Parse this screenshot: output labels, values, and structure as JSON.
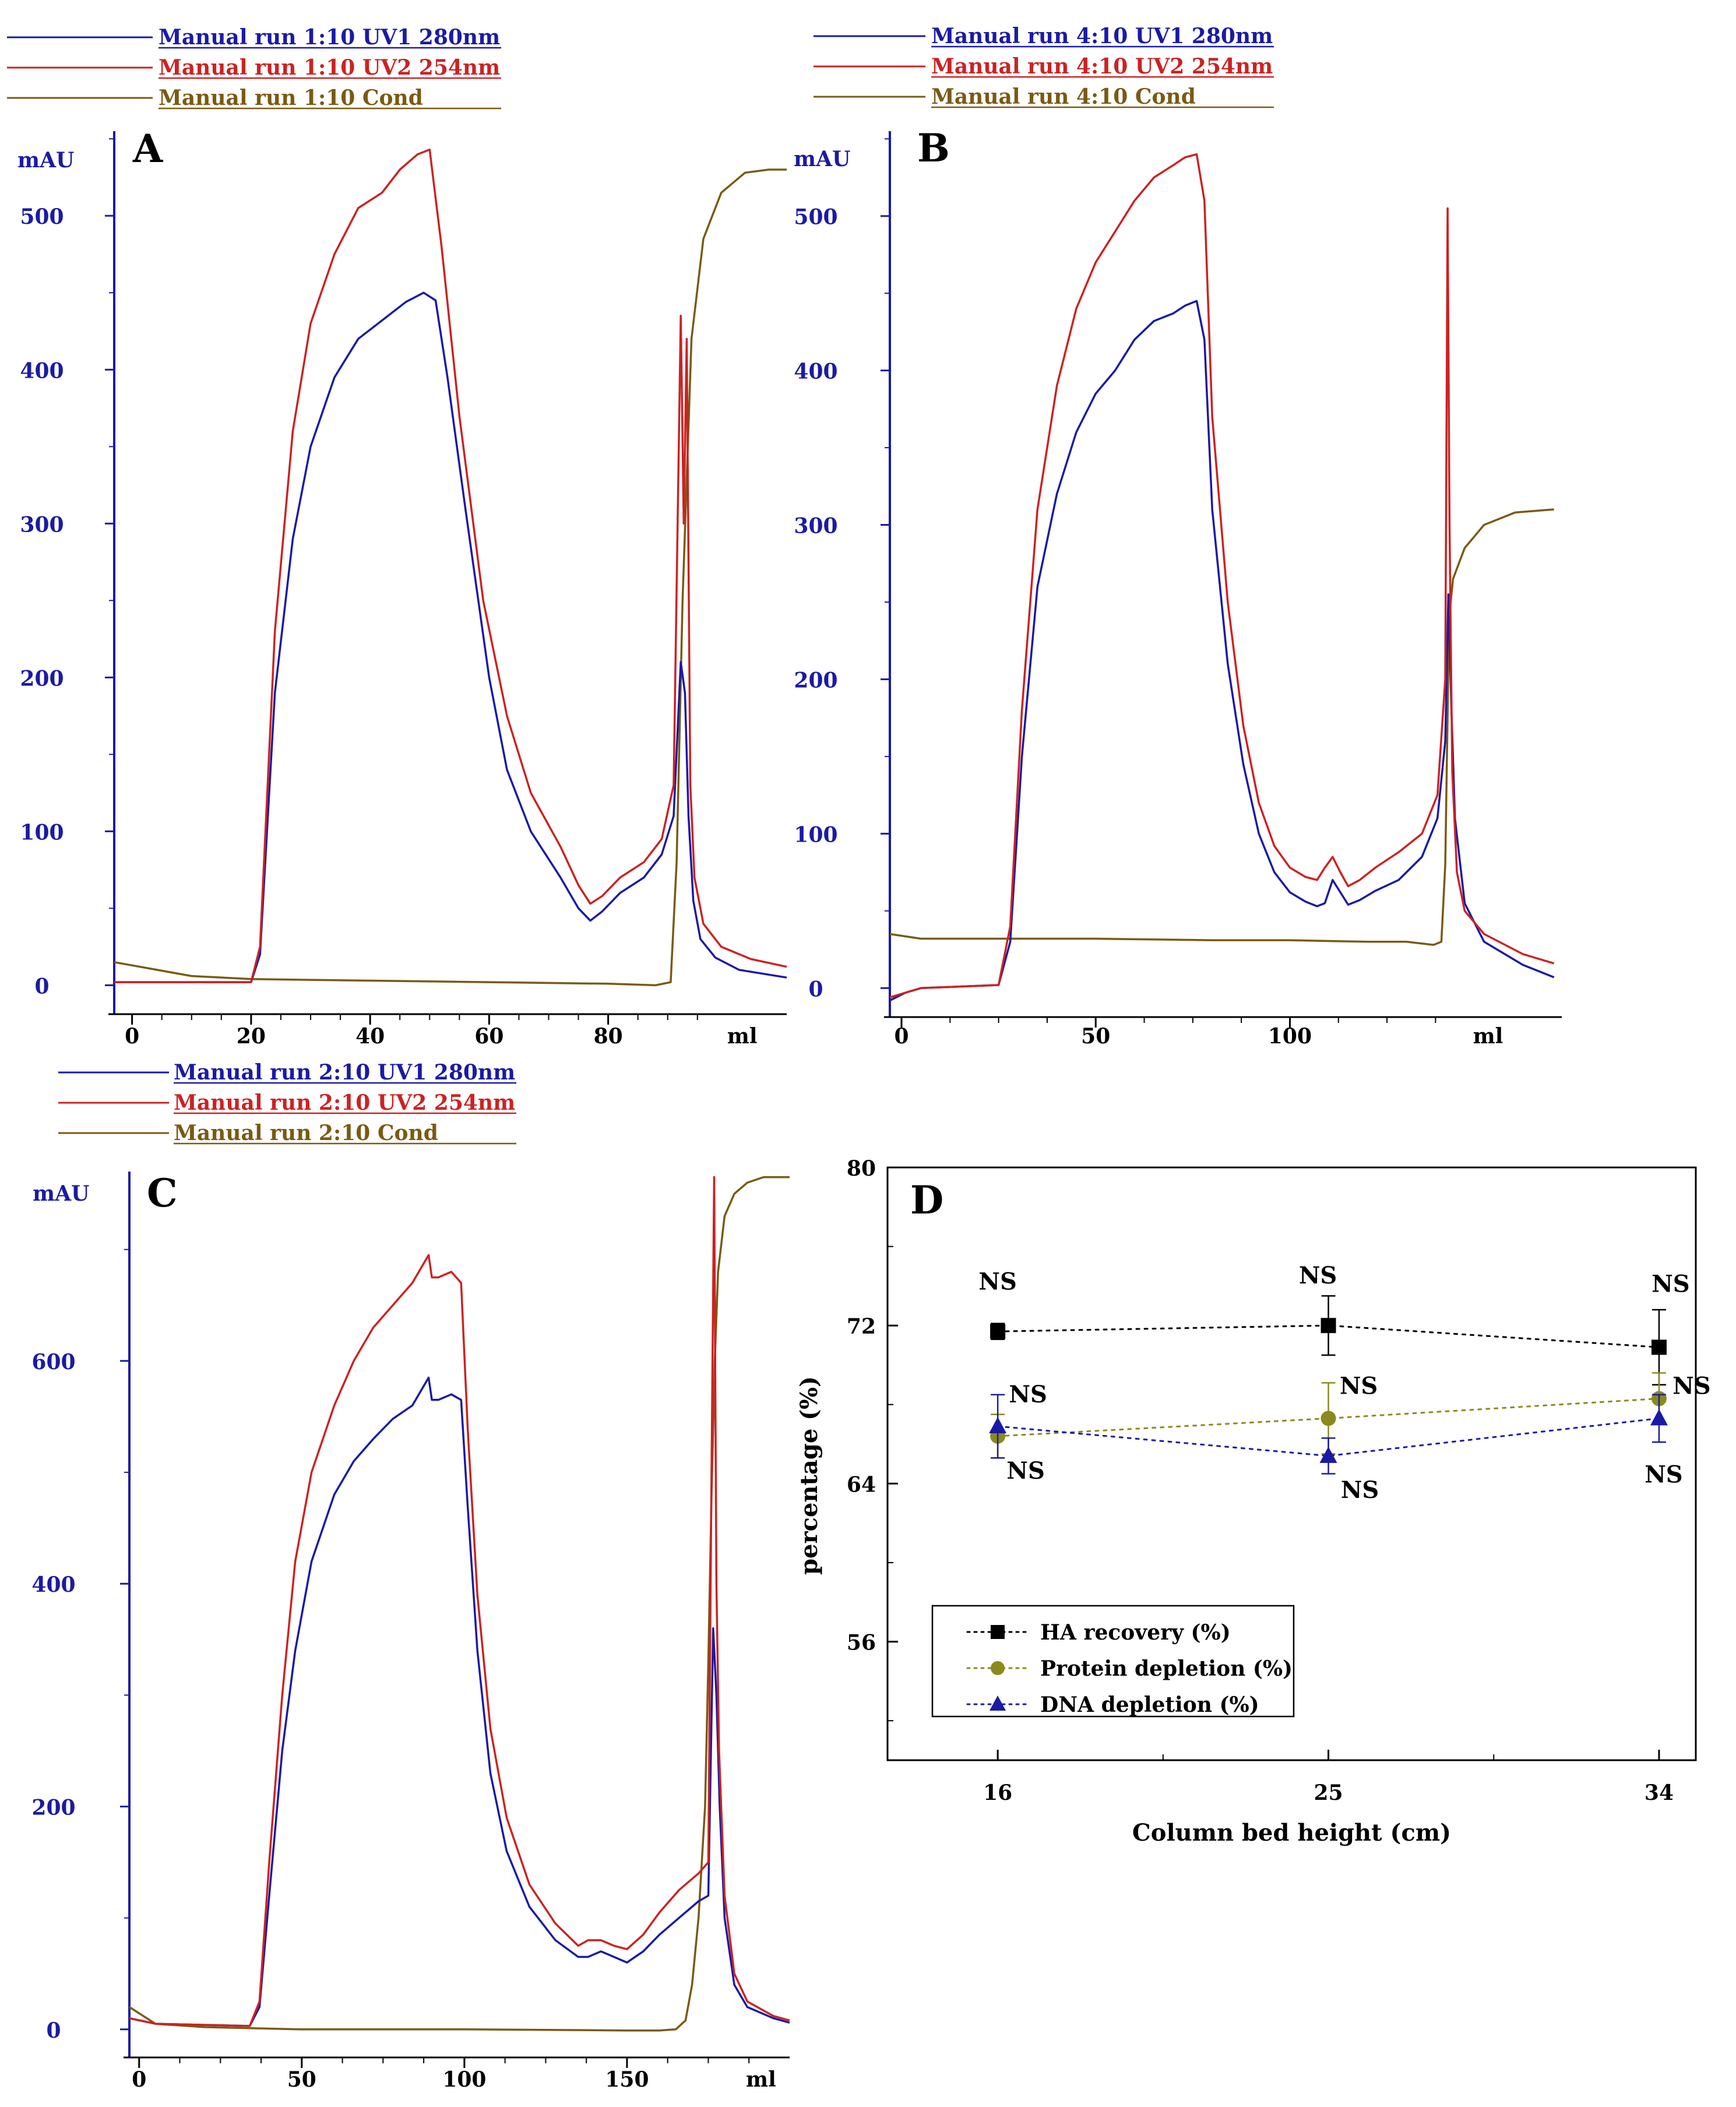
{
  "colors": {
    "uv1": "#1a1aa6",
    "uv2": "#cc2222",
    "cond": "#7a5a12",
    "axis_blue": "#1a1aa6",
    "d_black": "#000000",
    "d_olive": "#8a8a1e",
    "d_blue": "#1a1aa6"
  },
  "chart_data": [
    {
      "type": "line",
      "panel": "A",
      "legend": [
        "Manual run 1:10  UV1  280nm",
        "Manual run 1:10  UV2  254nm",
        "Manual run 1:10  Cond"
      ],
      "ylabel": "mAU",
      "xlabel": "ml",
      "xlim": [
        -3,
        110
      ],
      "ylim": [
        -15,
        555
      ],
      "xticks": [
        0,
        20,
        40,
        60,
        80
      ],
      "xtick_labels": [
        "0",
        "20",
        "40",
        "60",
        "80"
      ],
      "yticks": [
        0,
        100,
        200,
        300,
        400,
        500
      ],
      "ytick_labels": [
        "0",
        "100",
        "200",
        "300",
        "400",
        "500"
      ],
      "series": [
        {
          "name": "UV1 280nm",
          "x": [
            -3,
            20,
            21.5,
            24,
            27,
            30,
            34,
            38,
            42,
            46,
            49,
            51,
            53,
            56,
            60,
            63,
            67,
            72,
            75,
            77,
            79,
            82,
            86,
            89,
            91,
            92.2,
            92.9,
            93.5,
            94.3,
            95.5,
            98,
            102,
            110
          ],
          "y": [
            2,
            2,
            20,
            190,
            290,
            350,
            395,
            420,
            432,
            444,
            450,
            445,
            395,
            310,
            200,
            140,
            100,
            70,
            50,
            42,
            48,
            60,
            70,
            85,
            110,
            210,
            190,
            110,
            55,
            30,
            18,
            10,
            5
          ]
        },
        {
          "name": "UV2 254nm",
          "x": [
            -3,
            20,
            21.5,
            24,
            27,
            30,
            34,
            38,
            42,
            45,
            48,
            50,
            52,
            55,
            59,
            63,
            67,
            72,
            75,
            77,
            79,
            82,
            86,
            89,
            91,
            92.2,
            92.7,
            93.2,
            93.8,
            94.5,
            96,
            99,
            104,
            110
          ],
          "y": [
            2,
            2,
            25,
            230,
            360,
            430,
            475,
            505,
            515,
            530,
            540,
            543,
            480,
            370,
            250,
            175,
            125,
            90,
            65,
            53,
            58,
            70,
            80,
            95,
            130,
            435,
            300,
            420,
            130,
            70,
            40,
            25,
            17,
            12
          ]
        },
        {
          "name": "Cond",
          "x": [
            -3,
            10,
            20,
            40,
            60,
            80,
            88,
            90.5,
            91.5,
            92.5,
            94,
            96,
            99,
            103,
            107,
            110
          ],
          "y": [
            15,
            6,
            4,
            3,
            2,
            1,
            0,
            2,
            80,
            250,
            420,
            485,
            515,
            528,
            530,
            530
          ]
        }
      ]
    },
    {
      "type": "line",
      "panel": "B",
      "legend": [
        "Manual run 4:10  UV1  280nm",
        "Manual run 4:10  UV2  254nm",
        "Manual run 4:10  Cond"
      ],
      "ylabel": "mAU",
      "xlabel": "ml",
      "xlim": [
        -3,
        170
      ],
      "ylim": [
        -15,
        555
      ],
      "xticks": [
        0,
        50,
        100
      ],
      "xtick_labels": [
        "0",
        "50",
        "100"
      ],
      "yticks": [
        0,
        100,
        200,
        300,
        400,
        500
      ],
      "ytick_labels": [
        "0",
        "100",
        "200",
        "300",
        "400",
        "500"
      ],
      "series": [
        {
          "name": "UV1 280nm",
          "x": [
            -3,
            1,
            5,
            25,
            28,
            31,
            35,
            40,
            45,
            50,
            55,
            60,
            65,
            70,
            73,
            76,
            78,
            80,
            84,
            88,
            92,
            96,
            100,
            104,
            107,
            109,
            111,
            113,
            115,
            118,
            122,
            128,
            134,
            138,
            140,
            140.8,
            141.6,
            142.5,
            145,
            150,
            160,
            168
          ],
          "y": [
            -8,
            -3,
            0,
            2,
            30,
            150,
            260,
            320,
            360,
            385,
            400,
            420,
            432,
            437,
            442,
            445,
            420,
            310,
            210,
            145,
            100,
            75,
            62,
            56,
            53,
            55,
            70,
            62,
            54,
            57,
            63,
            70,
            85,
            110,
            160,
            255,
            180,
            110,
            55,
            30,
            15,
            7
          ]
        },
        {
          "name": "UV2 254nm",
          "x": [
            -3,
            1,
            5,
            25,
            28,
            31,
            35,
            40,
            45,
            50,
            55,
            60,
            65,
            70,
            73,
            76,
            78,
            80,
            84,
            88,
            92,
            96,
            100,
            104,
            107,
            109,
            111,
            113,
            115,
            118,
            122,
            128,
            134,
            138,
            140,
            140.6,
            141.1,
            141.8,
            143,
            145,
            150,
            160,
            168
          ],
          "y": [
            -6,
            -3,
            0,
            2,
            40,
            180,
            310,
            390,
            440,
            470,
            490,
            510,
            525,
            533,
            538,
            540,
            510,
            370,
            250,
            170,
            120,
            92,
            78,
            72,
            70,
            78,
            85,
            75,
            66,
            70,
            78,
            88,
            100,
            125,
            200,
            505,
            300,
            140,
            75,
            50,
            35,
            22,
            16
          ]
        },
        {
          "name": "Cond",
          "x": [
            -3,
            5,
            20,
            50,
            80,
            100,
            120,
            130,
            137,
            139,
            140,
            141,
            142,
            145,
            150,
            158,
            168
          ],
          "y": [
            35,
            32,
            32,
            32,
            31,
            31,
            30,
            30,
            28,
            30,
            80,
            240,
            265,
            285,
            300,
            308,
            310
          ]
        }
      ]
    },
    {
      "type": "line",
      "panel": "C",
      "legend": [
        "Manual run 2:10  UV1  280nm",
        "Manual run 2:10  UV2  254nm",
        "Manual run 2:10  Cond"
      ],
      "ylabel": "mAU",
      "xlabel": "ml",
      "xlim": [
        -3,
        200
      ],
      "ylim": [
        -20,
        770
      ],
      "xticks": [
        0,
        50,
        100,
        150
      ],
      "xtick_labels": [
        "0",
        "50",
        "100",
        "150"
      ],
      "yticks": [
        0,
        200,
        400,
        600
      ],
      "ytick_labels": [
        "0",
        "200",
        "400",
        "600"
      ],
      "series": [
        {
          "name": "UV1 280nm",
          "x": [
            -3,
            5,
            34,
            37,
            40,
            44,
            48,
            53,
            60,
            66,
            72,
            78,
            84,
            88,
            89,
            90,
            92,
            96,
            99,
            101,
            104,
            108,
            113,
            120,
            128,
            135,
            138,
            142,
            146,
            150,
            155,
            160,
            166,
            172,
            175,
            176.5,
            177.5,
            178.5,
            180,
            183,
            187,
            195,
            200
          ],
          "y": [
            10,
            5,
            3,
            20,
            120,
            250,
            340,
            420,
            480,
            510,
            530,
            548,
            560,
            580,
            585,
            565,
            565,
            570,
            565,
            470,
            340,
            230,
            160,
            110,
            80,
            65,
            65,
            70,
            65,
            60,
            70,
            85,
            100,
            115,
            120,
            360,
            300,
            200,
            100,
            40,
            20,
            10,
            6
          ]
        },
        {
          "name": "UV2 254nm",
          "x": [
            -3,
            5,
            34,
            37,
            40,
            44,
            48,
            53,
            60,
            66,
            72,
            78,
            84,
            88,
            89,
            90,
            92,
            96,
            99,
            101,
            104,
            108,
            113,
            120,
            128,
            135,
            138,
            142,
            146,
            150,
            155,
            160,
            166,
            172,
            175,
            176,
            176.8,
            177.5,
            178.3,
            180,
            183,
            187,
            195,
            200
          ],
          "y": [
            10,
            5,
            3,
            25,
            150,
            300,
            420,
            500,
            560,
            600,
            630,
            650,
            670,
            690,
            695,
            675,
            675,
            680,
            670,
            540,
            390,
            270,
            190,
            130,
            95,
            75,
            80,
            80,
            75,
            72,
            85,
            105,
            125,
            140,
            150,
            500,
            765,
            400,
            250,
            120,
            50,
            25,
            12,
            8
          ]
        },
        {
          "name": "Cond",
          "x": [
            -3,
            5,
            20,
            50,
            100,
            150,
            160,
            165,
            168,
            170,
            172,
            174,
            175,
            176,
            177,
            178,
            180,
            183,
            187,
            192,
            200
          ],
          "y": [
            20,
            5,
            2,
            0,
            0,
            -1,
            -1,
            0,
            8,
            40,
            100,
            200,
            330,
            480,
            600,
            680,
            730,
            750,
            760,
            765,
            765
          ]
        }
      ]
    },
    {
      "type": "scatter",
      "panel": "D",
      "xlabel": "Column bed height (cm)",
      "ylabel": "percentage (%)",
      "xlim": [
        13,
        35
      ],
      "ylim": [
        50,
        80
      ],
      "xticks": [
        16,
        25,
        34
      ],
      "xtick_labels": [
        "16",
        "25",
        "34"
      ],
      "yticks": [
        56,
        64,
        72,
        80
      ],
      "ytick_labels": [
        "56",
        "64",
        "72",
        "80"
      ],
      "legend": [
        "HA recovery (%)",
        "Protein depletion (%)",
        "DNA depletion (%)"
      ],
      "series": [
        {
          "name": "HA recovery (%)",
          "marker": "square",
          "x": [
            16,
            25,
            34
          ],
          "y": [
            71.7,
            72.0,
            70.9
          ],
          "err": [
            0.4,
            1.5,
            1.9
          ],
          "labels": [
            "NS",
            "NS",
            "NS"
          ]
        },
        {
          "name": "Protein depletion (%)",
          "marker": "circle",
          "x": [
            16,
            25,
            34
          ],
          "y": [
            66.4,
            67.3,
            68.3
          ],
          "err": [
            1.1,
            1.8,
            1.3
          ],
          "labels": [
            "NS",
            "NS",
            "NS"
          ]
        },
        {
          "name": "DNA depletion (%)",
          "marker": "triangle",
          "x": [
            16,
            25,
            34
          ],
          "y": [
            66.9,
            65.4,
            67.3
          ],
          "err": [
            1.6,
            0.9,
            1.2
          ],
          "labels": [
            "NS",
            "NS",
            "NS"
          ]
        }
      ]
    }
  ]
}
